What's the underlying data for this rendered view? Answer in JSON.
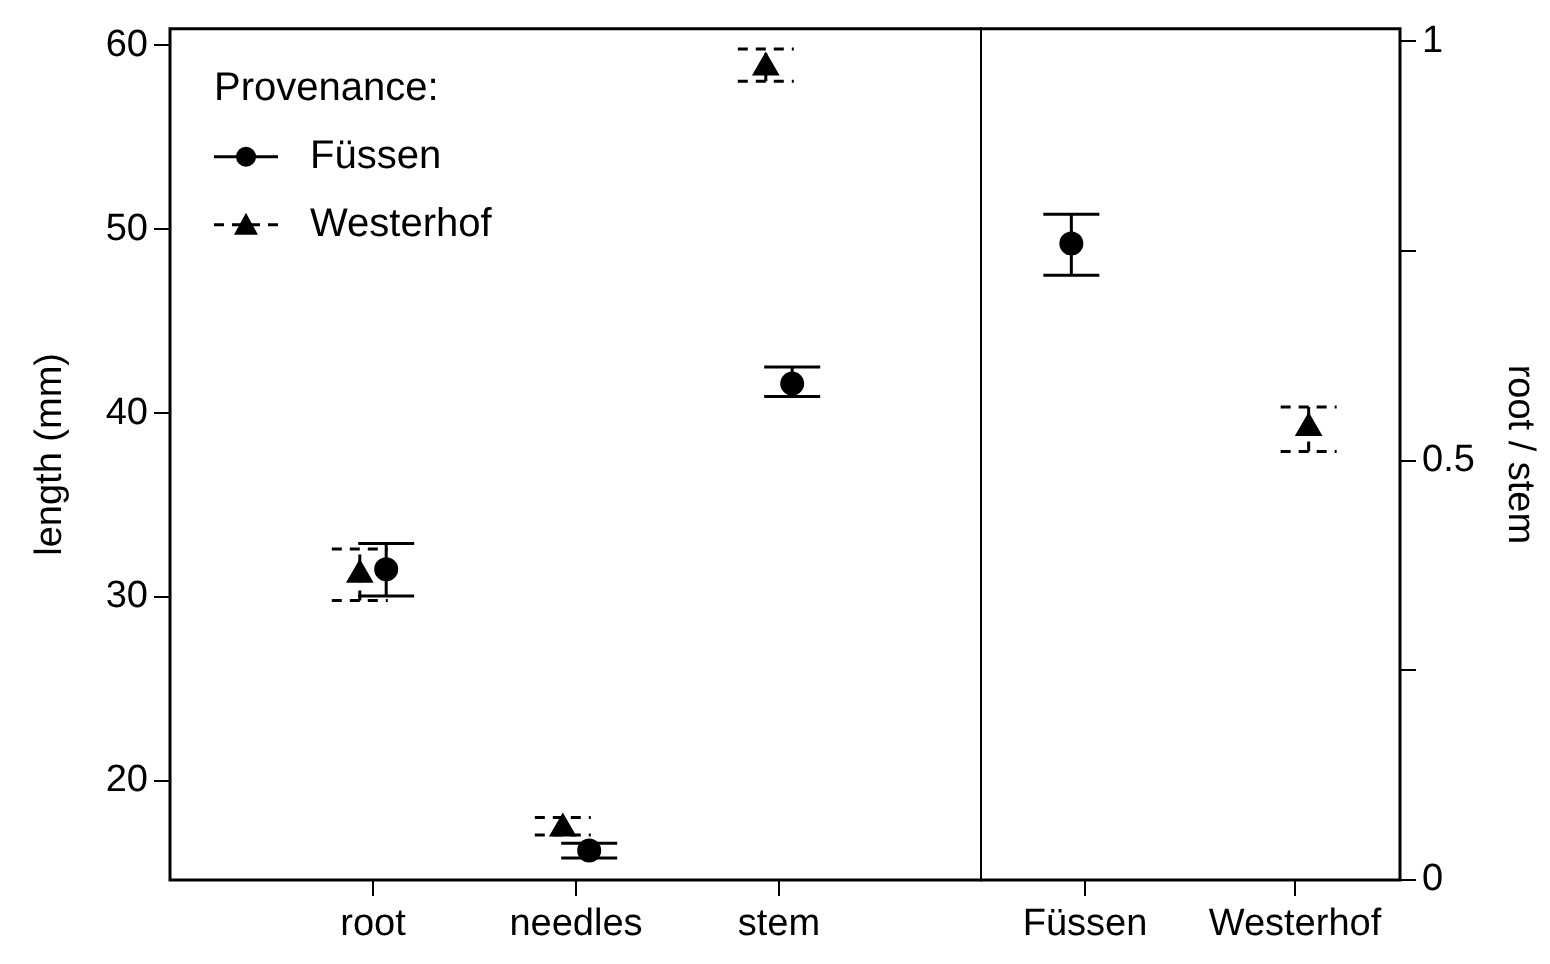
{
  "chart_data": [
    {
      "type": "scatter",
      "categories": [
        "root",
        "needles",
        "stem"
      ],
      "ylabel": "length (mm)",
      "ylim": [
        14.6,
        60.9
      ],
      "yticks": [
        20,
        30,
        40,
        50,
        60
      ],
      "legend": "top left",
      "legend_title": "Provenance:",
      "series": [
        {
          "name": "Westerhof",
          "color": "#000000",
          "marker": "triangle",
          "line_style": "dashed",
          "values": [
            31.2,
            17.4,
            58.8
          ],
          "errors": [
            [
              29.8,
              32.6
            ],
            [
              17.05,
              18.0
            ],
            [
              58.05,
              59.8
            ]
          ]
        },
        {
          "name": "Füssen",
          "color": "#000000",
          "marker": "circle",
          "line_style": "solid",
          "values": [
            31.5,
            16.2,
            41.6
          ],
          "errors": [
            [
              30.05,
              32.9
            ],
            [
              15.8,
              16.6
            ],
            [
              40.9,
              42.5
            ]
          ]
        }
      ]
    },
    {
      "type": "scatter",
      "categories": [
        "Füssen",
        "Westerhof"
      ],
      "y2label": "root / stem",
      "y2lim": [
        0,
        1.015
      ],
      "y2ticks": [
        0,
        {
          "value": 0.25,
          "label": null
        },
        0.5,
        {
          "value": 0.75,
          "label": null
        },
        1
      ],
      "series": [
        {
          "color": "#000000",
          "marker": "circle",
          "line_style": "solid",
          "axis": "y2",
          "values": [
            0.759,
            null
          ],
          "errors": [
            [
              0.721,
              0.794
            ],
            null
          ]
        },
        {
          "color": "#000000",
          "marker": "triangle",
          "line_style": "dashed",
          "axis": "y2",
          "values": [
            null,
            0.539
          ],
          "errors": [
            null,
            [
              0.511,
              0.564
            ]
          ]
        }
      ]
    }
  ]
}
